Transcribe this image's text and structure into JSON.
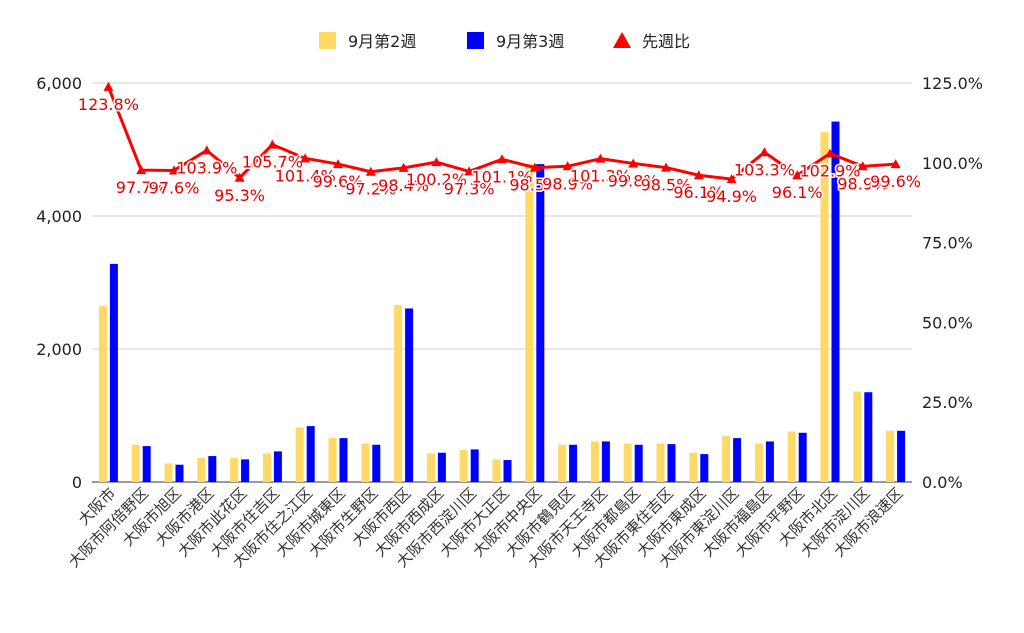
{
  "chart_data": {
    "type": "bar",
    "categories": [
      "大阪市",
      "大阪市阿倍野区",
      "大阪市旭区",
      "大阪市港区",
      "大阪市此花区",
      "大阪市住吉区",
      "大阪市住之江区",
      "大阪市城東区",
      "大阪市生野区",
      "大阪市西区",
      "大阪市西成区",
      "大阪市西淀川区",
      "大阪市大正区",
      "大阪市中央区",
      "大阪市鶴見区",
      "大阪市天王寺区",
      "大阪市都島区",
      "大阪市東住吉区",
      "大阪市東成区",
      "大阪市東淀川区",
      "大阪市福島区",
      "大阪市平野区",
      "大阪市北区",
      "大阪市淀川区",
      "大阪市浪速区"
    ],
    "series": [
      {
        "name": "9月第2週",
        "type": "bar",
        "axis": "left",
        "color": "#ffd966",
        "values": [
          2650,
          560,
          280,
          360,
          360,
          430,
          820,
          660,
          580,
          2660,
          430,
          480,
          340,
          4780,
          560,
          610,
          580,
          580,
          440,
          690,
          580,
          760,
          5260,
          1360,
          770
        ]
      },
      {
        "name": "9月第3週",
        "type": "bar",
        "axis": "left",
        "color": "#0000ff",
        "values": [
          3280,
          540,
          260,
          390,
          340,
          460,
          840,
          660,
          560,
          2610,
          440,
          490,
          330,
          4780,
          560,
          610,
          560,
          570,
          420,
          660,
          610,
          740,
          5420,
          1350,
          770
        ]
      },
      {
        "name": "先週比",
        "type": "line",
        "axis": "right",
        "color": "#ff0000",
        "marker": "triangle",
        "values": [
          123.8,
          97.7,
          97.6,
          103.9,
          95.3,
          105.7,
          101.4,
          99.6,
          97.2,
          98.4,
          100.2,
          97.3,
          101.1,
          98.5,
          98.9,
          101.3,
          99.8,
          98.5,
          96.1,
          94.9,
          103.3,
          96.1,
          102.9,
          98.9,
          99.6
        ],
        "labels": [
          "123.8%",
          "97.7%",
          "97.6%",
          "103.9%",
          "95.3%",
          "105.7%",
          "101.4%",
          "99.6%",
          "97.2%",
          "98.4%",
          "100.2%",
          "97.3%",
          "101.1%",
          "98.5%",
          "98.9%",
          "101.3%",
          "99.8%",
          "98.5%",
          "96.1%",
          "94.9%",
          "103.3%",
          "96.1%",
          "102.9%",
          "98.9%",
          "99.6%"
        ]
      }
    ],
    "y_left": {
      "min": 0,
      "max": 6000,
      "ticks": [
        0,
        2000,
        4000,
        6000
      ],
      "tick_labels": [
        "0",
        "2,000",
        "4,000",
        "6,000"
      ]
    },
    "y_right": {
      "min": 0,
      "max": 125,
      "ticks": [
        0,
        25,
        50,
        75,
        100,
        125
      ],
      "tick_labels": [
        "0.0%",
        "25.0%",
        "50.0%",
        "75.0%",
        "100.0%",
        "125.0%"
      ]
    },
    "legend_position": "top",
    "grid": true,
    "title": "",
    "xlabel": "",
    "ylabel": ""
  }
}
